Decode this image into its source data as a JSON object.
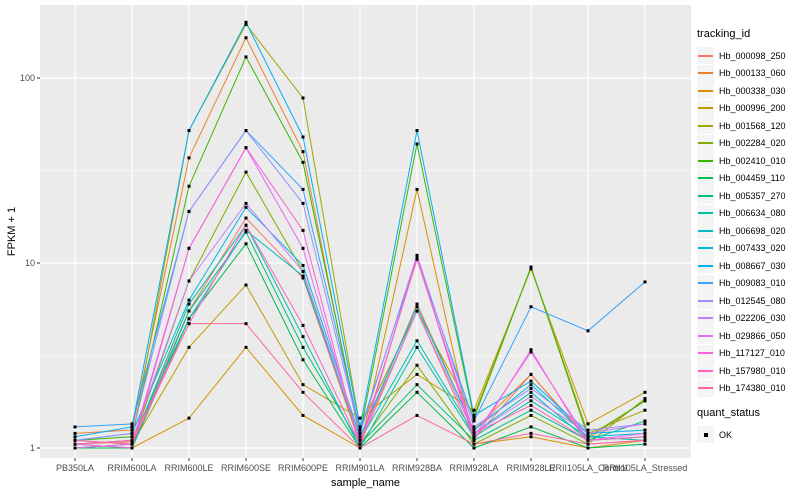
{
  "chart_data": {
    "type": "line",
    "title": "",
    "xlabel": "sample_name",
    "ylabel": "FPKM + 1",
    "y_scale": "log10",
    "y_ticks": [
      1,
      10,
      100
    ],
    "y_tick_labels": [
      "1",
      "10",
      "100"
    ],
    "y_minor_ticks": [
      3.162,
      31.62
    ],
    "ylim": [
      1,
      200
    ],
    "grid": true,
    "legend_position": "right",
    "panel_bg": "#EBEBEB",
    "grid_color": "#FFFFFF",
    "tick_label_color": "#4D4D4D",
    "point_color": "#000000",
    "point_shape": "square",
    "categories": [
      "PB350LA",
      "RRIM600LA",
      "RRIM600LE",
      "RRIM600SE",
      "RRIM600PE",
      "RRIM901LA",
      "RRIM928BA",
      "RRIM928LA",
      "RRIM928LE",
      "RRII105LA_Control",
      "RRII105LA_Stressed"
    ],
    "series": [
      {
        "name": "Hb_000098_250",
        "color": "#F8766D",
        "values": [
          1.05,
          1.08,
          5.5,
          17.5,
          8.3,
          1.05,
          5.5,
          1.12,
          2.5,
          1.1,
          1.15
        ]
      },
      {
        "name": "Hb_000133_060",
        "color": "#EA8331",
        "values": [
          1.2,
          1.25,
          37,
          165,
          40,
          1.1,
          6.0,
          1.25,
          2.5,
          1.12,
          1.8
        ]
      },
      {
        "name": "Hb_000338_030",
        "color": "#D89000",
        "values": [
          1.0,
          1.0,
          1.45,
          3.5,
          1.5,
          1.0,
          25,
          1.05,
          1.15,
          1.0,
          1.1
        ]
      },
      {
        "name": "Hb_000996_200",
        "color": "#C09B00",
        "values": [
          1.1,
          1.05,
          3.5,
          7.6,
          2.2,
          1.45,
          2.5,
          1.6,
          9.3,
          1.35,
          2.0
        ]
      },
      {
        "name": "Hb_001568_120",
        "color": "#A3A500",
        "values": [
          1.05,
          1.1,
          52,
          195,
          78,
          1.3,
          5.5,
          1.5,
          9.5,
          1.2,
          1.6
        ]
      },
      {
        "name": "Hb_002284_020",
        "color": "#7CAE00",
        "values": [
          1.0,
          1.05,
          8.0,
          31,
          9.0,
          1.05,
          2.8,
          1.05,
          1.5,
          1.05,
          1.85
        ]
      },
      {
        "name": "Hb_002410_010",
        "color": "#39B600",
        "values": [
          1.1,
          1.15,
          26,
          130,
          35,
          1.2,
          44,
          1.45,
          9.5,
          1.15,
          1.8
        ]
      },
      {
        "name": "Hb_004459_110",
        "color": "#00BB4E",
        "values": [
          1.0,
          1.0,
          5.0,
          12.7,
          3.0,
          1.0,
          2.0,
          1.0,
          1.3,
          1.0,
          1.05
        ]
      },
      {
        "name": "Hb_005357_270",
        "color": "#00BF7D",
        "values": [
          1.05,
          1.0,
          5.5,
          14.7,
          3.5,
          1.05,
          2.2,
          1.1,
          1.6,
          1.1,
          1.4
        ]
      },
      {
        "name": "Hb_006634_080",
        "color": "#00C1A3",
        "values": [
          1.0,
          1.05,
          6.0,
          16,
          4.0,
          1.0,
          3.5,
          1.15,
          1.8,
          1.15,
          1.1
        ]
      },
      {
        "name": "Hb_006698_020",
        "color": "#00BFC4",
        "values": [
          1.05,
          1.1,
          5.0,
          15,
          8.5,
          1.1,
          3.8,
          1.2,
          2.0,
          1.1,
          1.15
        ]
      },
      {
        "name": "Hb_007433_020",
        "color": "#00BAE0",
        "values": [
          1.1,
          1.2,
          6.3,
          20,
          9.7,
          1.15,
          5.8,
          1.25,
          2.2,
          1.15,
          1.2
        ]
      },
      {
        "name": "Hb_008667_030",
        "color": "#00B0F6",
        "values": [
          1.15,
          1.3,
          52,
          200,
          48,
          1.3,
          52,
          1.5,
          2.3,
          1.2,
          1.25
        ]
      },
      {
        "name": "Hb_009083_010",
        "color": "#35A2FF",
        "values": [
          1.3,
          1.35,
          19,
          52,
          25,
          1.25,
          10.5,
          1.4,
          5.8,
          4.3,
          7.9
        ]
      },
      {
        "name": "Hb_012545_080",
        "color": "#9590FF",
        "values": [
          1.1,
          1.2,
          19,
          52,
          21,
          1.2,
          11,
          1.3,
          2.1,
          1.25,
          1.35
        ]
      },
      {
        "name": "Hb_022206_030",
        "color": "#C77CFF",
        "values": [
          1.05,
          1.1,
          8.0,
          21,
          9.0,
          1.1,
          5.5,
          1.2,
          1.9,
          1.2,
          1.35
        ]
      },
      {
        "name": "Hb_029866_050",
        "color": "#E76BF3",
        "values": [
          1.0,
          1.05,
          12,
          42,
          12,
          1.05,
          10.5,
          1.15,
          3.3,
          1.1,
          1.2
        ]
      },
      {
        "name": "Hb_117127_010",
        "color": "#FA62DB",
        "values": [
          1.05,
          1.0,
          12,
          42,
          15,
          1.0,
          10.8,
          1.1,
          3.4,
          1.05,
          1.1
        ]
      },
      {
        "name": "Hb_157980_010",
        "color": "#FF62BC",
        "values": [
          1.1,
          1.05,
          4.7,
          16,
          4.6,
          1.05,
          10.5,
          1.2,
          1.7,
          1.1,
          1.15
        ]
      },
      {
        "name": "Hb_174380_010",
        "color": "#FF6A98",
        "values": [
          1.05,
          1.1,
          4.7,
          4.7,
          2.0,
          1.0,
          1.5,
          1.05,
          1.2,
          1.05,
          1.1
        ]
      }
    ],
    "legend": {
      "color_title": "tracking_id",
      "shape_title": "quant_status",
      "shape_items": [
        {
          "label": "OK",
          "marker": "black-square"
        }
      ]
    }
  }
}
